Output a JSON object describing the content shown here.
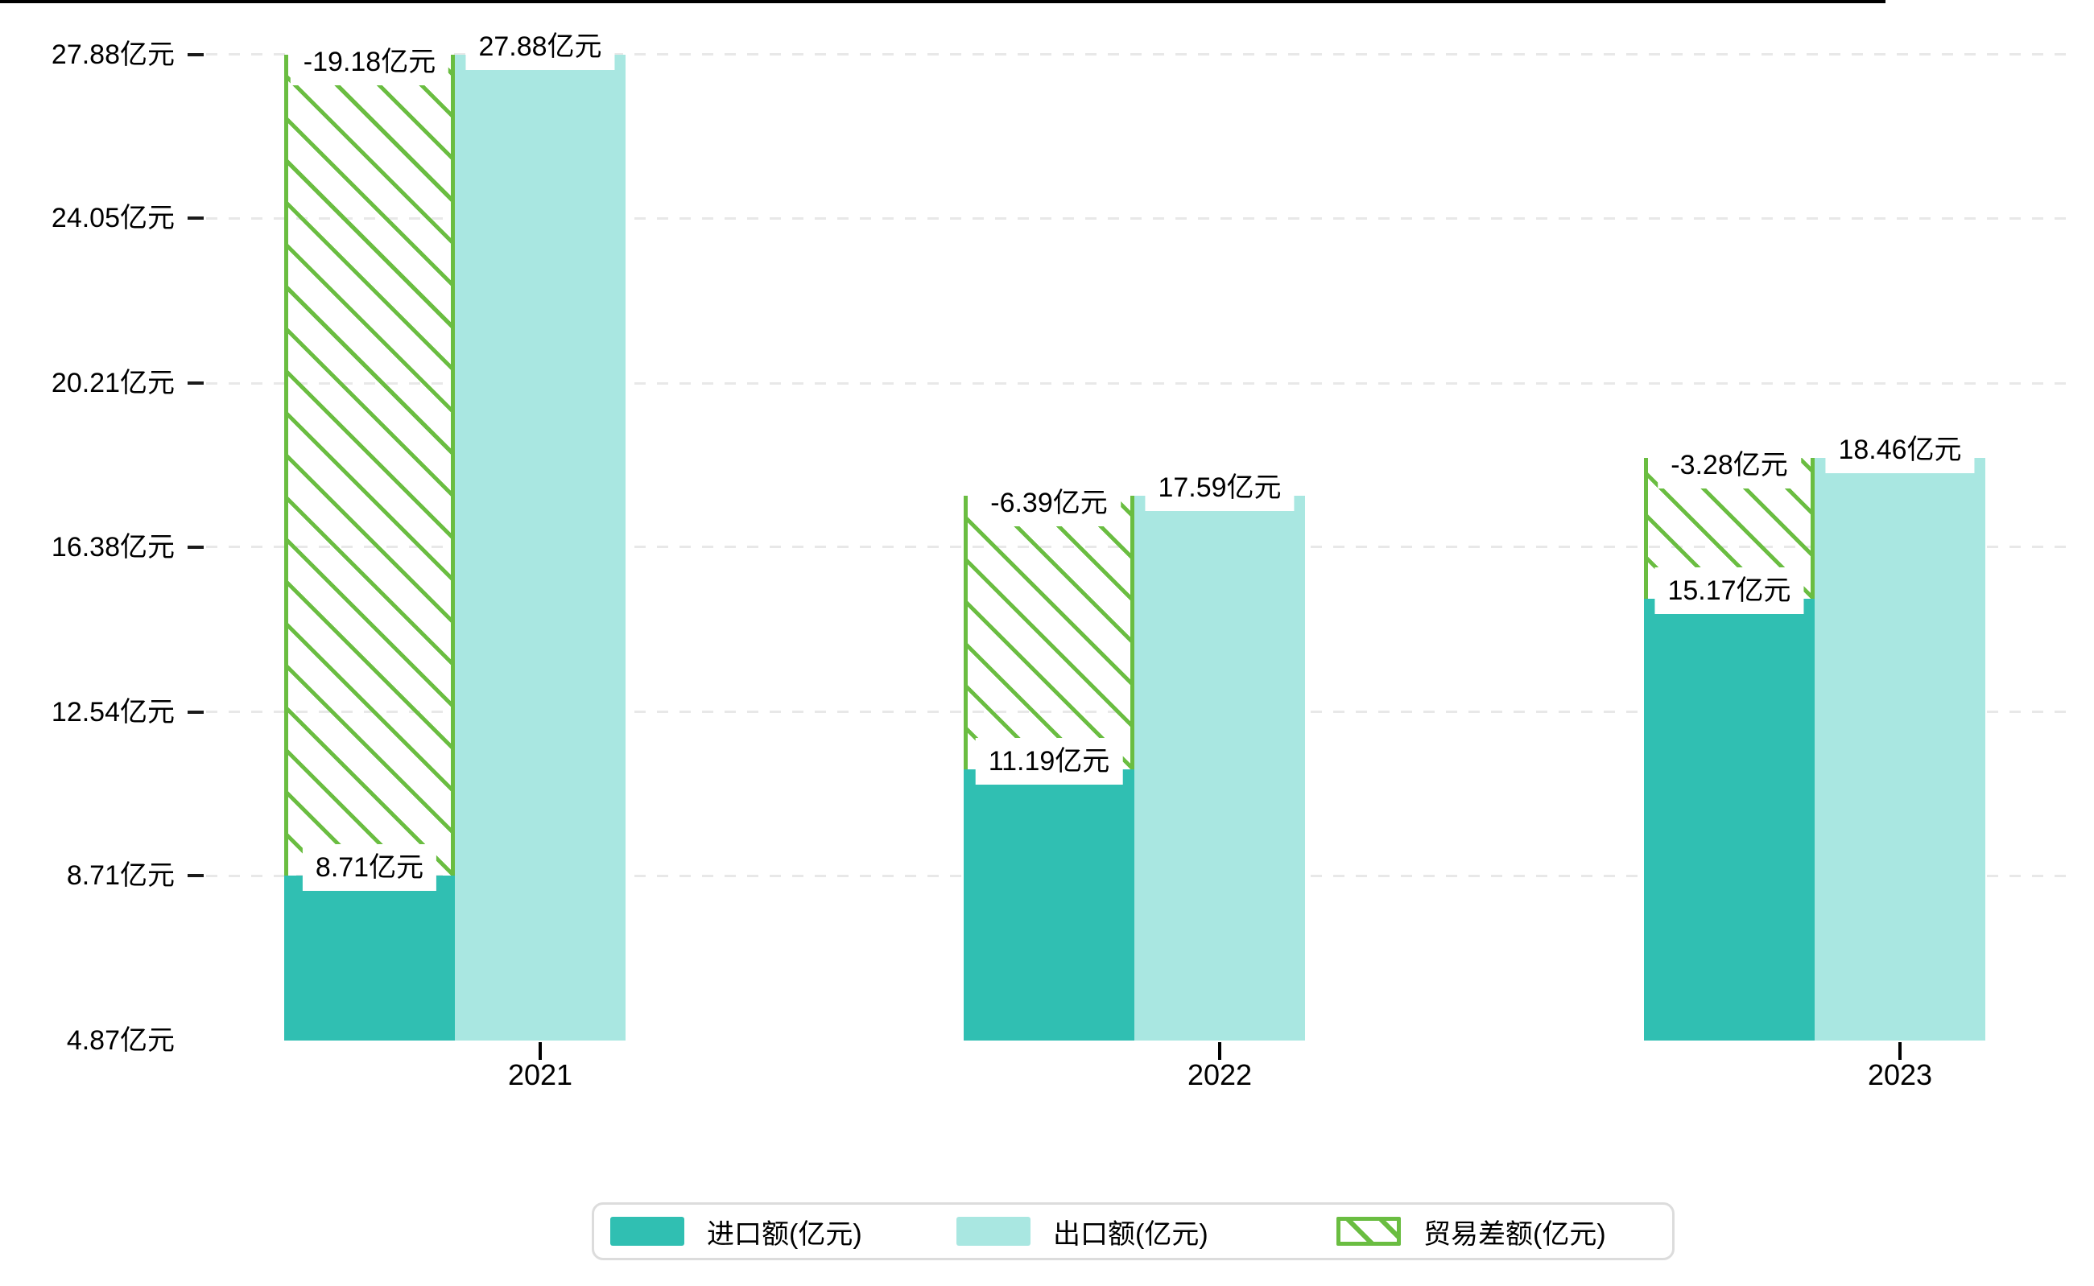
{
  "chart": {
    "background": "#ffffff",
    "text_color": "#000000",
    "grid_color": "#e8e8e8",
    "axis_color": "#000000",
    "label_box_bg": "#ffffff",
    "legend_border_color": "#dcdcdc"
  },
  "chart_data": {
    "type": "bar",
    "categories": [
      "2021",
      "2022",
      "2023"
    ],
    "series": [
      {
        "name": "进口额(亿元)",
        "color": "#30bfb2",
        "values": [
          8.71,
          11.19,
          15.17
        ],
        "data_labels": [
          "8.71亿元",
          "11.19亿元",
          "15.17亿元"
        ]
      },
      {
        "name": "出口额(亿元)",
        "color": "#a9e7e1",
        "values": [
          27.88,
          17.59,
          18.46
        ],
        "data_labels": [
          "27.88亿元",
          "17.59亿元",
          "18.46亿元"
        ]
      },
      {
        "name": "贸易差额(亿元)",
        "color": "#6abd41",
        "style": "diagonal-hatch-outline",
        "span": "from-import-level-to-export-level",
        "values": [
          -19.18,
          -6.39,
          -3.28
        ],
        "data_labels": [
          "-19.18亿元",
          "-6.39亿元",
          "-3.28亿元"
        ]
      }
    ],
    "y_ticks": [
      {
        "value": 4.87,
        "label": "4.87亿元"
      },
      {
        "value": 8.71,
        "label": "8.71亿元"
      },
      {
        "value": 12.54,
        "label": "12.54亿元"
      },
      {
        "value": 16.38,
        "label": "16.38亿元"
      },
      {
        "value": 20.21,
        "label": "20.21亿元"
      },
      {
        "value": 24.05,
        "label": "24.05亿元"
      },
      {
        "value": 27.88,
        "label": "27.88亿元"
      }
    ],
    "ylim": [
      4.87,
      27.88
    ],
    "xlabel": "",
    "ylabel": "",
    "title": "",
    "grid": "dashed-horizontal",
    "legend_position": "bottom-center"
  },
  "legend": {
    "items": [
      {
        "label": "进口额(亿元)",
        "swatch": "solid-teal"
      },
      {
        "label": "出口额(亿元)",
        "swatch": "solid-light-cyan"
      },
      {
        "label": "贸易差额(亿元)",
        "swatch": "green-hatched-outline"
      }
    ]
  }
}
